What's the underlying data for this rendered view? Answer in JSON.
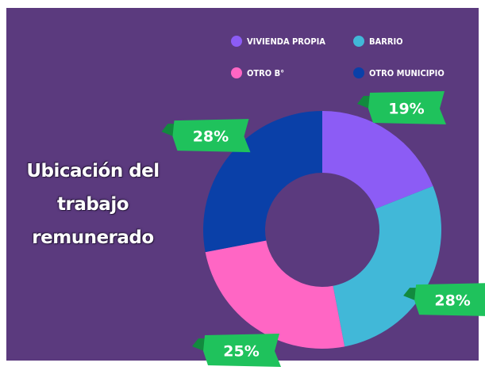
{
  "chart_data": {
    "type": "donut",
    "title": "Ubicación del trabajo remunerado",
    "categories": [
      "VIVIENDA PROPIA",
      "BARRIO",
      "OTRO B°",
      "OTRO MUNICIPIO"
    ],
    "values": [
      19,
      28,
      25,
      28
    ],
    "value_labels": [
      "19%",
      "28%",
      "25%",
      "28%"
    ],
    "colors": [
      "#8c5cf5",
      "#41b8d8",
      "#ff66c4",
      "#0a40a8"
    ]
  }
}
